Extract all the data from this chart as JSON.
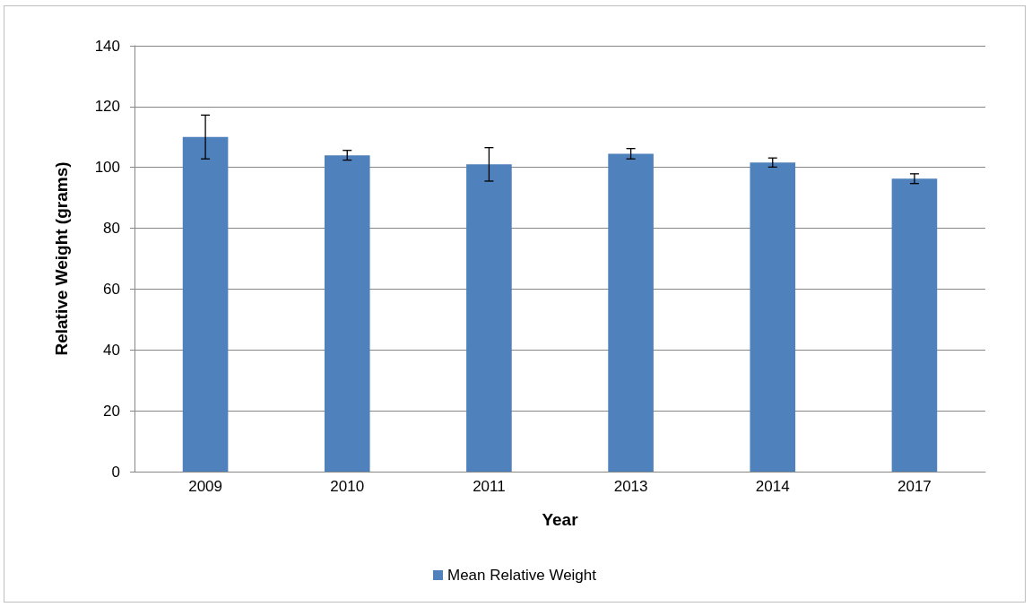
{
  "chart_data": {
    "type": "bar",
    "xlabel": "Year",
    "ylabel": "Relative Weight (grams)",
    "categories": [
      "2009",
      "2010",
      "2011",
      "2013",
      "2014",
      "2017"
    ],
    "series": [
      {
        "name": "Mean Relative Weight",
        "color": "#4f81bd",
        "values": [
          110,
          104,
          101,
          104.5,
          101.6,
          96.3
        ],
        "errors": [
          7.2,
          1.6,
          5.5,
          1.7,
          1.5,
          1.6
        ]
      }
    ],
    "ylim": [
      0,
      140
    ],
    "yticks": [
      0,
      20,
      40,
      60,
      80,
      100,
      120,
      140
    ],
    "grid": "y",
    "legend": "bottom"
  }
}
